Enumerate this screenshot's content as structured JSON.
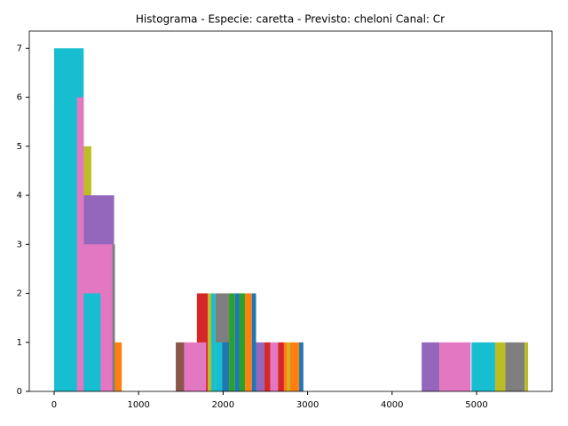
{
  "chart_data": {
    "type": "histogram",
    "title": "Histograma - Especie: caretta - Previsto: cheloni Canal: Cr",
    "xlim": [
      -294,
      5893
    ],
    "ylim": [
      0,
      7.35
    ],
    "xticks": [
      0,
      1000,
      2000,
      3000,
      4000,
      5000
    ],
    "yticks": [
      0,
      1,
      2,
      3,
      4,
      5,
      6,
      7
    ],
    "series": [
      {
        "color": "#17becf",
        "bins": [
          0,
          350
        ],
        "values": [
          7
        ]
      },
      {
        "color": "#bcbd22",
        "bins": [
          350,
          440
        ],
        "values": [
          5
        ]
      },
      {
        "color": "#9467bd",
        "bins": [
          350,
          710
        ],
        "values": [
          4
        ]
      },
      {
        "color": "#e377c2",
        "bins": [
          270,
          350,
          690
        ],
        "values": [
          6,
          3
        ]
      },
      {
        "color": "#17becf",
        "bins": [
          350,
          550
        ],
        "values": [
          2
        ]
      },
      {
        "color": "#7f7f7f",
        "bins": [
          690,
          720
        ],
        "values": [
          3
        ]
      },
      {
        "color": "#ff7f0e",
        "bins": [
          720,
          800
        ],
        "values": [
          1
        ]
      },
      {
        "color": "#8c564b",
        "bins": [
          1440,
          1540
        ],
        "values": [
          1
        ]
      },
      {
        "color": "#d62728",
        "bins": [
          1690,
          1820
        ],
        "values": [
          2
        ]
      },
      {
        "color": "#bcbd22",
        "bins": [
          1820,
          1860
        ],
        "values": [
          2
        ]
      },
      {
        "color": "#17becf",
        "bins": [
          1860,
          1910
        ],
        "values": [
          2
        ]
      },
      {
        "color": "#7f7f7f",
        "bins": [
          1910,
          2070
        ],
        "values": [
          2
        ]
      },
      {
        "color": "#2ca02c",
        "bins": [
          2070,
          2140
        ],
        "values": [
          2
        ]
      },
      {
        "color": "#1f77b4",
        "bins": [
          2140,
          2190
        ],
        "values": [
          2
        ]
      },
      {
        "color": "#2ca02c",
        "bins": [
          2190,
          2260
        ],
        "values": [
          2
        ]
      },
      {
        "color": "#ff7f0e",
        "bins": [
          2260,
          2340
        ],
        "values": [
          2
        ]
      },
      {
        "color": "#1f77b4",
        "bins": [
          2340,
          2390
        ],
        "values": [
          2
        ]
      },
      {
        "color": "#e377c2",
        "bins": [
          1540,
          1800
        ],
        "values": [
          1
        ]
      },
      {
        "color": "#17becf",
        "bins": [
          1910,
          1990
        ],
        "values": [
          1
        ]
      },
      {
        "color": "#1f77b4",
        "bins": [
          1990,
          2070
        ],
        "values": [
          1
        ]
      },
      {
        "color": "#9467bd",
        "bins": [
          2390,
          2490
        ],
        "values": [
          1
        ]
      },
      {
        "color": "#d62728",
        "bins": [
          2490,
          2560
        ],
        "values": [
          1
        ]
      },
      {
        "color": "#e377c2",
        "bins": [
          2560,
          2650
        ],
        "values": [
          1
        ]
      },
      {
        "color": "#d62728",
        "bins": [
          2650,
          2720
        ],
        "values": [
          1
        ]
      },
      {
        "color": "#ff7f0e",
        "bins": [
          2720,
          2760
        ],
        "values": [
          1
        ]
      },
      {
        "color": "#bcbd22",
        "bins": [
          2760,
          2790
        ],
        "values": [
          1
        ]
      },
      {
        "color": "#ff7f0e",
        "bins": [
          2790,
          2900
        ],
        "values": [
          1
        ]
      },
      {
        "color": "#1f77b4",
        "bins": [
          2900,
          2950
        ],
        "values": [
          1
        ]
      },
      {
        "color": "#9467bd",
        "bins": [
          4350,
          4560
        ],
        "values": [
          1
        ]
      },
      {
        "color": "#e377c2",
        "bins": [
          4560,
          4930
        ],
        "values": [
          1
        ]
      },
      {
        "color": "#17becf",
        "bins": [
          4940,
          5220
        ],
        "values": [
          1
        ]
      },
      {
        "color": "#bcbd22",
        "bins": [
          5220,
          5340
        ],
        "values": [
          1
        ]
      },
      {
        "color": "#7f7f7f",
        "bins": [
          5340,
          5570
        ],
        "values": [
          1
        ]
      },
      {
        "color": "#bcbd22",
        "bins": [
          5570,
          5610
        ],
        "values": [
          1
        ]
      }
    ]
  }
}
